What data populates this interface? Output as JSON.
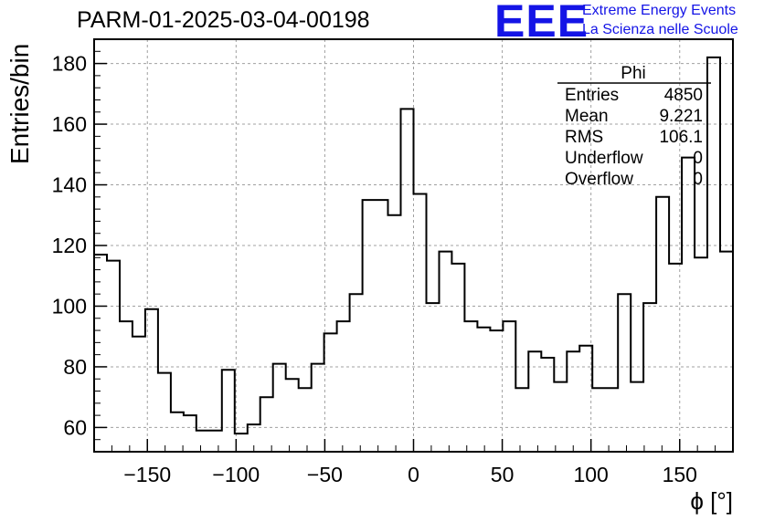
{
  "header": {
    "title": "PARM-01-2025-03-04-00198",
    "logo_text": "EEE",
    "logo_line1": "Extreme Energy Events",
    "logo_line2": "La Scienza nelle Scuole",
    "logo_color": "#1414e6"
  },
  "stats_box": {
    "title": "Phi",
    "rows": [
      {
        "label": "Entries",
        "value": "4850"
      },
      {
        "label": "Mean",
        "value": "9.221"
      },
      {
        "label": "RMS",
        "value": "106.1"
      },
      {
        "label": "Underflow",
        "value": "0"
      },
      {
        "label": "Overflow",
        "value": "0"
      }
    ]
  },
  "chart_data": {
    "type": "bar",
    "style": "step-histogram",
    "title": "PARM-01-2025-03-04-00198",
    "xlabel": "ϕ [°]",
    "ylabel": "Entries/bin",
    "xlim": [
      -180,
      180
    ],
    "ylim": [
      52,
      188
    ],
    "bin_edges_start": -180,
    "bin_width": 7.2,
    "values": [
      117,
      115,
      95,
      90,
      99,
      78,
      65,
      64,
      59,
      59,
      79,
      58,
      61,
      70,
      81,
      76,
      73,
      81,
      91,
      95,
      104,
      135,
      135,
      130,
      165,
      137,
      101,
      118,
      114,
      95,
      93,
      92,
      95,
      73,
      85,
      83,
      75,
      85,
      87,
      73,
      73,
      104,
      75,
      101,
      136,
      114,
      149,
      116,
      182,
      118
    ],
    "xticks": [
      -150,
      -100,
      -50,
      0,
      50,
      100,
      150
    ],
    "yticks": [
      60,
      80,
      100,
      120,
      140,
      160,
      180
    ],
    "grid": true,
    "line_color": "#000000",
    "grid_color": "#a0a0a0"
  }
}
